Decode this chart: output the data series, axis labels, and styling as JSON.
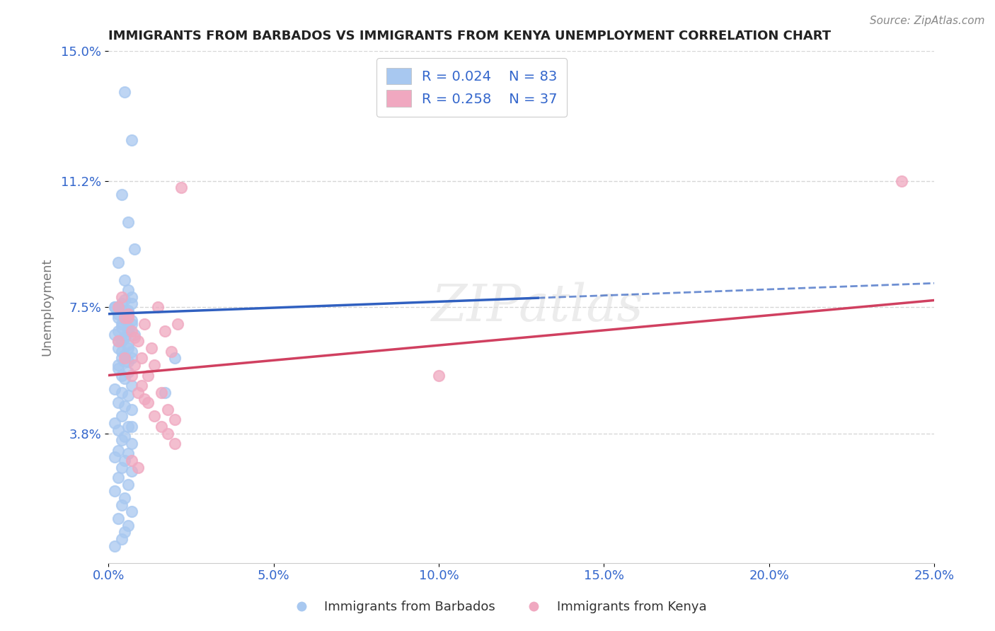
{
  "title": "IMMIGRANTS FROM BARBADOS VS IMMIGRANTS FROM KENYA UNEMPLOYMENT CORRELATION CHART",
  "source": "Source: ZipAtlas.com",
  "ylabel": "Unemployment",
  "xlim": [
    0.0,
    0.25
  ],
  "ylim": [
    0.0,
    0.15
  ],
  "yticks": [
    0.038,
    0.075,
    0.112,
    0.15
  ],
  "ytick_labels": [
    "3.8%",
    "7.5%",
    "11.2%",
    "15.0%"
  ],
  "xticks": [
    0.0,
    0.05,
    0.1,
    0.15,
    0.2,
    0.25
  ],
  "xtick_labels": [
    "0.0%",
    "5.0%",
    "10.0%",
    "15.0%",
    "20.0%",
    "25.0%"
  ],
  "barbados_R": 0.024,
  "barbados_N": 83,
  "kenya_R": 0.258,
  "kenya_N": 37,
  "barbados_color": "#a8c8f0",
  "kenya_color": "#f0a8c0",
  "barbados_line_color": "#3060c0",
  "kenya_line_color": "#d04060",
  "background_color": "#ffffff",
  "watermark": "ZIPatlas",
  "title_color": "#222222",
  "legend_text_color": "#3366cc",
  "grid_color": "#cccccc",
  "barbados_x": [
    0.005,
    0.007,
    0.004,
    0.006,
    0.008,
    0.003,
    0.005,
    0.006,
    0.007,
    0.004,
    0.002,
    0.006,
    0.003,
    0.005,
    0.007,
    0.004,
    0.006,
    0.003,
    0.008,
    0.005,
    0.004,
    0.006,
    0.003,
    0.007,
    0.005,
    0.004,
    0.006,
    0.003,
    0.005,
    0.007,
    0.002,
    0.004,
    0.006,
    0.003,
    0.005,
    0.007,
    0.004,
    0.006,
    0.002,
    0.005,
    0.003,
    0.006,
    0.004,
    0.007,
    0.005,
    0.003,
    0.006,
    0.004,
    0.005,
    0.007,
    0.002,
    0.004,
    0.006,
    0.003,
    0.005,
    0.007,
    0.004,
    0.002,
    0.006,
    0.003,
    0.005,
    0.004,
    0.007,
    0.003,
    0.006,
    0.002,
    0.005,
    0.004,
    0.007,
    0.003,
    0.006,
    0.002,
    0.005,
    0.004,
    0.007,
    0.003,
    0.006,
    0.005,
    0.004,
    0.002,
    0.007,
    0.02,
    0.017
  ],
  "barbados_y": [
    0.138,
    0.124,
    0.108,
    0.1,
    0.092,
    0.088,
    0.083,
    0.08,
    0.078,
    0.076,
    0.075,
    0.074,
    0.073,
    0.072,
    0.071,
    0.07,
    0.069,
    0.068,
    0.067,
    0.066,
    0.065,
    0.064,
    0.063,
    0.062,
    0.061,
    0.06,
    0.059,
    0.058,
    0.077,
    0.076,
    0.075,
    0.074,
    0.073,
    0.072,
    0.071,
    0.07,
    0.069,
    0.068,
    0.067,
    0.066,
    0.065,
    0.063,
    0.062,
    0.06,
    0.059,
    0.057,
    0.056,
    0.055,
    0.054,
    0.052,
    0.051,
    0.05,
    0.049,
    0.047,
    0.046,
    0.045,
    0.043,
    0.041,
    0.04,
    0.039,
    0.037,
    0.036,
    0.035,
    0.033,
    0.032,
    0.031,
    0.03,
    0.028,
    0.027,
    0.025,
    0.023,
    0.021,
    0.019,
    0.017,
    0.015,
    0.013,
    0.011,
    0.009,
    0.007,
    0.005,
    0.04,
    0.06,
    0.05
  ],
  "kenya_x": [
    0.003,
    0.005,
    0.007,
    0.009,
    0.011,
    0.013,
    0.015,
    0.017,
    0.019,
    0.021,
    0.004,
    0.006,
    0.008,
    0.01,
    0.012,
    0.014,
    0.016,
    0.018,
    0.02,
    0.022,
    0.003,
    0.005,
    0.007,
    0.009,
    0.011,
    0.006,
    0.008,
    0.01,
    0.012,
    0.014,
    0.016,
    0.018,
    0.02,
    0.1,
    0.24,
    0.007,
    0.009
  ],
  "kenya_y": [
    0.075,
    0.072,
    0.068,
    0.065,
    0.07,
    0.063,
    0.075,
    0.068,
    0.062,
    0.07,
    0.078,
    0.073,
    0.066,
    0.06,
    0.055,
    0.058,
    0.05,
    0.045,
    0.042,
    0.11,
    0.065,
    0.06,
    0.055,
    0.05,
    0.048,
    0.072,
    0.058,
    0.052,
    0.047,
    0.043,
    0.04,
    0.038,
    0.035,
    0.055,
    0.112,
    0.03,
    0.028
  ],
  "barbados_line_x0": 0.0,
  "barbados_line_x1": 0.25,
  "barbados_line_y0": 0.073,
  "barbados_line_y1": 0.082,
  "kenya_line_x0": 0.0,
  "kenya_line_x1": 0.25,
  "kenya_line_y0": 0.055,
  "kenya_line_y1": 0.077,
  "barbados_line_solid_end": 0.13
}
